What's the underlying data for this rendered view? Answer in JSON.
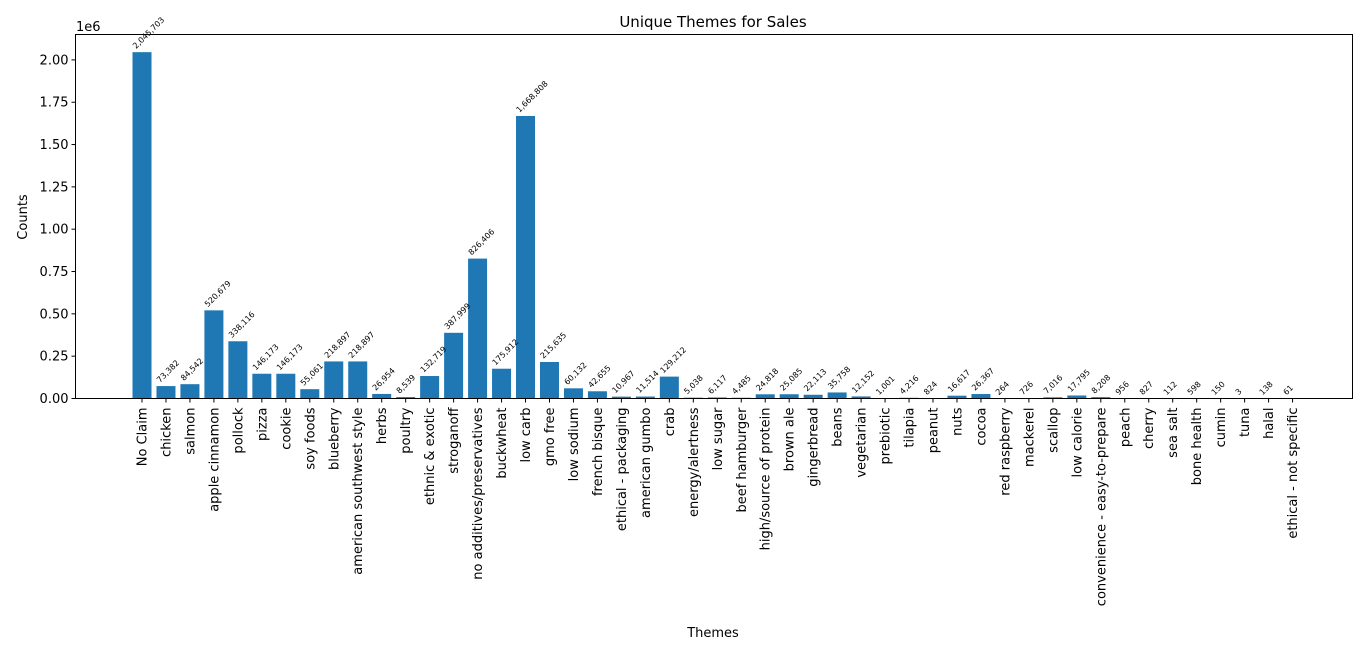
{
  "chart_data": {
    "type": "bar",
    "title": "Unique Themes for Sales",
    "xlabel": "Themes",
    "ylabel": "Counts",
    "y_offset_label": "1e6",
    "ylim": [
      0,
      2150000
    ],
    "yticks": [
      0,
      250000,
      500000,
      750000,
      1000000,
      1250000,
      1500000,
      1750000,
      2000000
    ],
    "ytick_labels": [
      "0.00",
      "0.25",
      "0.50",
      "0.75",
      "1.00",
      "1.25",
      "1.50",
      "1.75",
      "2.00"
    ],
    "bar_color": "#1f77b4",
    "grid": false,
    "categories": [
      "No Claim",
      "chicken",
      "salmon",
      "apple cinnamon",
      "pollock",
      "pizza",
      "cookie",
      "soy foods",
      "blueberry",
      "american southwest style",
      "herbs",
      "poultry",
      "ethnic & exotic",
      "stroganoff",
      "no additives/preservatives",
      "buckwheat",
      "low carb",
      "gmo free",
      "low sodium",
      "french bisque",
      "ethical - packaging",
      "american gumbo",
      "crab",
      "energy/alertness",
      "low sugar",
      "beef hamburger",
      "high/source of protein",
      "brown ale",
      "gingerbread",
      "beans",
      "vegetarian",
      "prebiotic",
      "tilapia",
      "peanut",
      "nuts",
      "cocoa",
      "red raspberry",
      "mackerel",
      "scallop",
      "low calorie",
      "convenience - easy-to-prepare",
      "peach",
      "cherry",
      "sea salt",
      "bone health",
      "cumin",
      "tuna",
      "halal",
      "ethical - not specific"
    ],
    "values": [
      2045703,
      73382,
      84542,
      520679,
      338116,
      146173,
      146173,
      55061,
      218897,
      218897,
      26954,
      8539,
      132719,
      387999,
      826406,
      175912,
      1668808,
      215635,
      60132,
      42655,
      10967,
      11514,
      129212,
      5038,
      6117,
      4485,
      24818,
      25085,
      22113,
      35758,
      12152,
      1001,
      4216,
      824,
      16617,
      26367,
      264,
      726,
      7016,
      17795,
      8208,
      956,
      827,
      112,
      598,
      150,
      3,
      138,
      61
    ],
    "value_labels": [
      "2,045,703",
      "73,382",
      "84,542",
      "520,679",
      "338,116",
      "146,173",
      "146,173",
      "55,061",
      "218,897",
      "218,897",
      "26,954",
      "8,539",
      "132,719",
      "387,999",
      "826,406",
      "175,912",
      "1,668,808",
      "215,635",
      "60,132",
      "42,655",
      "10,967",
      "11,514",
      "129,212",
      "5,038",
      "6,117",
      "4,485",
      "24,818",
      "25,085",
      "22,113",
      "35,758",
      "12,152",
      "1,001",
      "4,216",
      "824",
      "16,617",
      "26,367",
      "264",
      "726",
      "7,016",
      "17,795",
      "8,208",
      "956",
      "827",
      "112",
      "598",
      "150",
      "3",
      "138",
      "61"
    ]
  }
}
